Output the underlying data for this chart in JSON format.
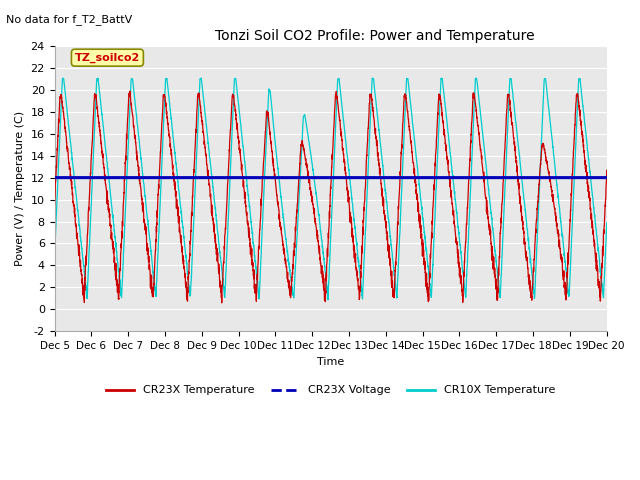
{
  "title": "Tonzi Soil CO2 Profile: Power and Temperature",
  "subtitle": "No data for f_T2_BattV",
  "ylabel": "Power (V) / Temperature (C)",
  "xlabel": "Time",
  "ylim": [
    -2,
    24
  ],
  "yticks": [
    -2,
    0,
    2,
    4,
    6,
    8,
    10,
    12,
    14,
    16,
    18,
    20,
    22,
    24
  ],
  "xtick_labels": [
    "Dec 5",
    "Dec 6",
    "Dec 7",
    "Dec 8",
    "Dec 9",
    "Dec 10",
    "Dec 11",
    "Dec 12",
    "Dec 13",
    "Dec 14",
    "Dec 15",
    "Dec 16",
    "Dec 17",
    "Dec 18",
    "Dec 19",
    "Dec 20"
  ],
  "voltage_value": 12.0,
  "voltage_color": "#0000bb",
  "cr23x_color": "#cc0000",
  "cr10x_color": "#00cccc",
  "legend_label_cr23x_temp": "CR23X Temperature",
  "legend_label_cr23x_volt": "CR23X Voltage",
  "legend_label_cr10x_temp": "CR10X Temperature",
  "annotation_label": "TZ_soilco2",
  "bg_color": "#e8e8e8"
}
